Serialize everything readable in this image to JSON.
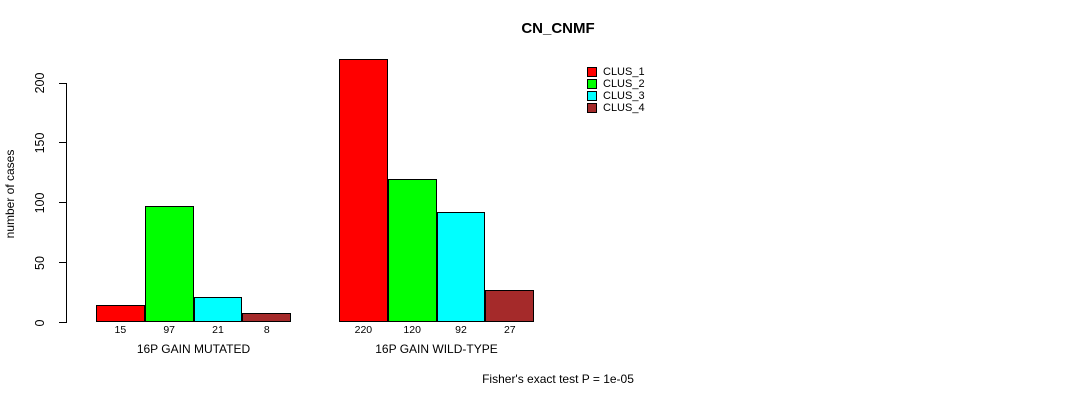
{
  "chart_data": {
    "type": "bar",
    "title": "CN_CNMF",
    "ylabel": "number of cases",
    "xlabel": "",
    "ylim": [
      0,
      200
    ],
    "yticks": [
      0,
      50,
      100,
      150,
      200
    ],
    "categories": [
      "16P GAIN MUTATED",
      "16P GAIN WILD-TYPE"
    ],
    "series": [
      {
        "name": "CLUS_1",
        "color": "#FF0000",
        "values": [
          15,
          220
        ]
      },
      {
        "name": "CLUS_2",
        "color": "#00FF00",
        "values": [
          97,
          120
        ]
      },
      {
        "name": "CLUS_3",
        "color": "#00FFFF",
        "values": [
          21,
          92
        ]
      },
      {
        "name": "CLUS_4",
        "color": "#A52A2A",
        "values": [
          8,
          27
        ]
      }
    ],
    "bar_value_labels": [
      [
        15,
        97,
        21,
        8
      ],
      [
        220,
        120,
        92,
        27
      ]
    ],
    "legend_position": "top-right",
    "grid": false,
    "annotation": "Fisher's exact test P = 1e-05"
  },
  "colors": {
    "background": "#FFFFFF",
    "text": "#000000",
    "bar_border": "#000000"
  }
}
